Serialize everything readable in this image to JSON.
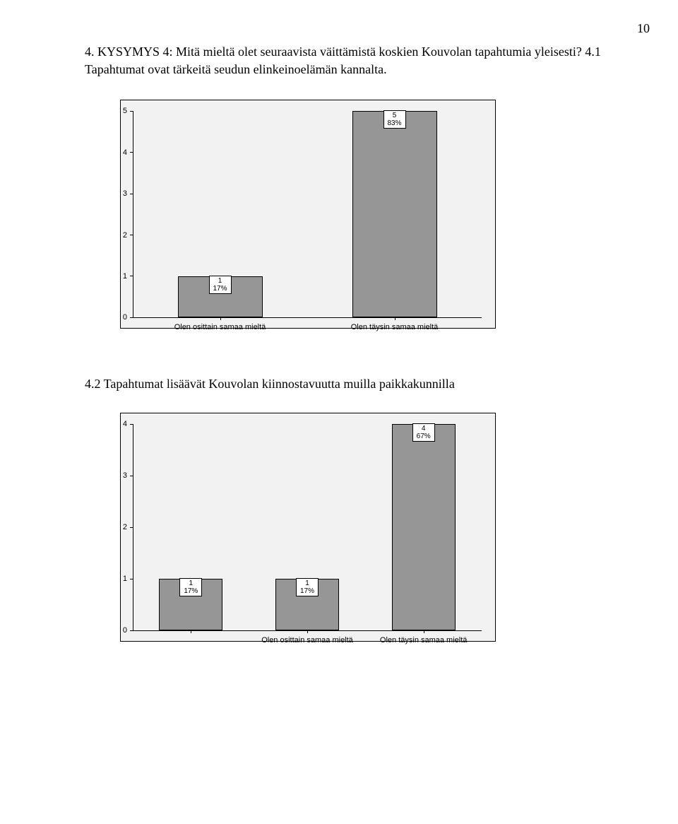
{
  "page_number": "10",
  "heading_text": "4. KYSYMYS 4: Mitä mieltä olet seuraavista väittämistä koskien Kouvolan tapahtumia yleisesti? 4.1 Tapahtumat ovat tärkeitä seudun elinkeinoelämän kannalta.",
  "subheading_text": "4.2 Tapahtumat lisäävät Kouvolan kiinnostavuutta muilla paikkakunnilla",
  "chart1": {
    "type": "bar",
    "frame_bg": "#f2f2f2",
    "bar_color": "#969696",
    "bar_border": "#000000",
    "y_ticks": [
      "0",
      "1",
      "2",
      "3",
      "4",
      "5"
    ],
    "y_max": 5,
    "bars": [
      {
        "x_label": "Olen osittain samaa mieltä",
        "value": 1,
        "label_count": "1",
        "label_pct": "17%"
      },
      {
        "x_label": "Olen täysin samaa mieltä",
        "value": 5,
        "label_count": "5",
        "label_pct": "83%"
      }
    ]
  },
  "chart2": {
    "type": "bar",
    "frame_bg": "#f2f2f2",
    "bar_color": "#969696",
    "bar_border": "#000000",
    "y_ticks": [
      "0",
      "1",
      "2",
      "3",
      "4"
    ],
    "y_max": 4,
    "bars": [
      {
        "x_label": "",
        "value": 1,
        "label_count": "1",
        "label_pct": "17%"
      },
      {
        "x_label": "Olen osittain samaa mieltä",
        "value": 1,
        "label_count": "1",
        "label_pct": "17%"
      },
      {
        "x_label": "Olen täysin samaa mieltä",
        "value": 4,
        "label_count": "4",
        "label_pct": "67%"
      }
    ]
  }
}
